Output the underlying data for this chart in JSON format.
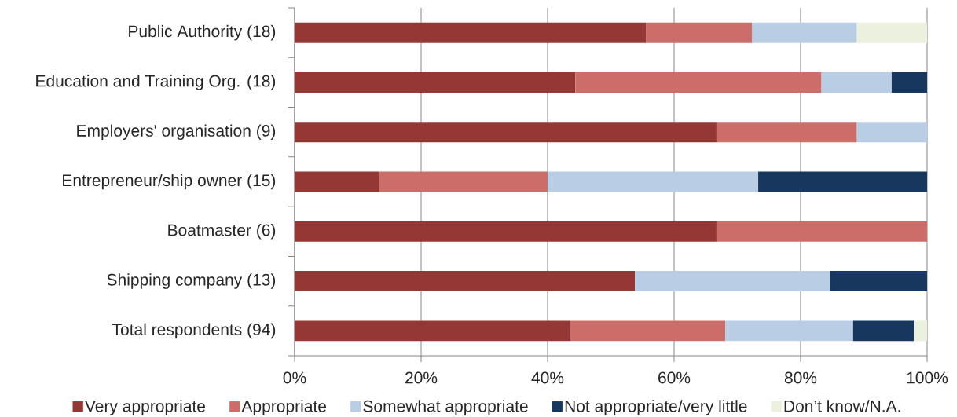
{
  "chart_data": {
    "type": "bar",
    "orientation": "horizontal",
    "stacked": true,
    "categories": [
      "Public Authority (18)",
      "Education and Training Org. (18)",
      "Employers' organisation (9)",
      "Entrepreneur/ship owner (15)",
      "Boatmaster (6)",
      "Shipping company (13)",
      "Total respondents (94)"
    ],
    "series": [
      {
        "name": "Very appropriate",
        "color": "#953735",
        "values": [
          55.6,
          44.4,
          66.7,
          13.3,
          66.7,
          53.8,
          43.6
        ]
      },
      {
        "name": "Appropriate",
        "color": "#cd6d6a",
        "values": [
          16.7,
          38.9,
          22.2,
          26.7,
          33.3,
          null,
          24.5
        ]
      },
      {
        "name": "Somewhat appropriate",
        "color": "#b9cde5",
        "values": [
          16.6,
          11.1,
          11.1,
          33.3,
          null,
          30.8,
          20.2
        ]
      },
      {
        "name": "Not appropriate/very little",
        "color": "#17375e",
        "values": [
          null,
          5.6,
          null,
          26.7,
          null,
          15.4,
          9.6
        ]
      },
      {
        "name": "Don’t know/N.A.",
        "color": "#ebf1de",
        "values": [
          11.1,
          null,
          null,
          null,
          null,
          null,
          2.1
        ]
      }
    ],
    "xlim": [
      0,
      100
    ],
    "xticks": [
      {
        "value": 0,
        "label": "0%"
      },
      {
        "value": 20,
        "label": "20%"
      },
      {
        "value": 40,
        "label": "40%"
      },
      {
        "value": 60,
        "label": "60%"
      },
      {
        "value": 80,
        "label": "80%"
      },
      {
        "value": 100,
        "label": "100%"
      }
    ],
    "grid": "x",
    "legend": "bottom"
  }
}
